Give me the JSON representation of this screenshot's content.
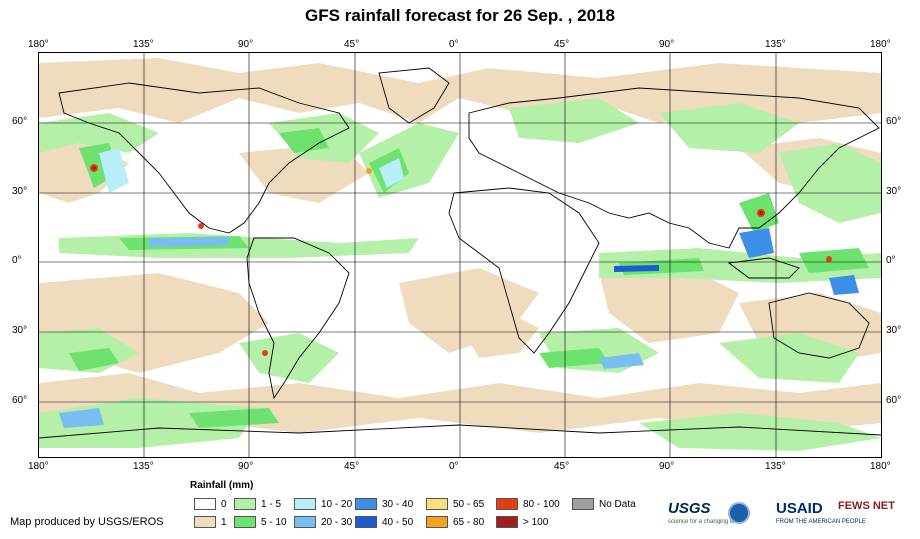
{
  "title": "GFS rainfall forecast for 26 Sep. , 2018",
  "top_axis_labels": [
    "180°",
    "135°",
    "90°",
    "45°",
    "0°",
    "45°",
    "90°",
    "135°",
    "180°"
  ],
  "bottom_axis_labels": [
    "180°",
    "135°",
    "90°",
    "45°",
    "0°",
    "45°",
    "90°",
    "135°",
    "180°"
  ],
  "lat_labels": [
    "60°",
    "30°",
    "0°",
    "30°",
    "60°"
  ],
  "legend": {
    "title": "Rainfall (mm)",
    "items": [
      {
        "label": "0",
        "color": "#ffffff"
      },
      {
        "label": "1",
        "color": "#efdcbf"
      },
      {
        "label": "1 - 5",
        "color": "#b4f0a8"
      },
      {
        "label": "5 - 10",
        "color": "#6ee26e"
      },
      {
        "label": "10 - 20",
        "color": "#b8eef8"
      },
      {
        "label": "20 - 30",
        "color": "#78bef0"
      },
      {
        "label": "30 - 40",
        "color": "#3c8ee6"
      },
      {
        "label": "40 - 50",
        "color": "#1e5ad2"
      },
      {
        "label": "50 - 65",
        "color": "#f6e07a"
      },
      {
        "label": "65 - 80",
        "color": "#f5a31c"
      },
      {
        "label": "80 - 100",
        "color": "#e63c14"
      },
      {
        "label": "> 100",
        "color": "#a01e1e"
      },
      {
        "label": "No Data",
        "color": "#a0a0a0"
      }
    ]
  },
  "credit": "Map produced by USGS/EROS",
  "logos": {
    "usgs": "USGS",
    "usgs_tagline": "science for a changing world",
    "usaid": "USAID",
    "usaid_tagline": "FROM THE AMERICAN PEOPLE",
    "fews": "FEWS NET",
    "noaa": "noaa-seal-icon"
  }
}
